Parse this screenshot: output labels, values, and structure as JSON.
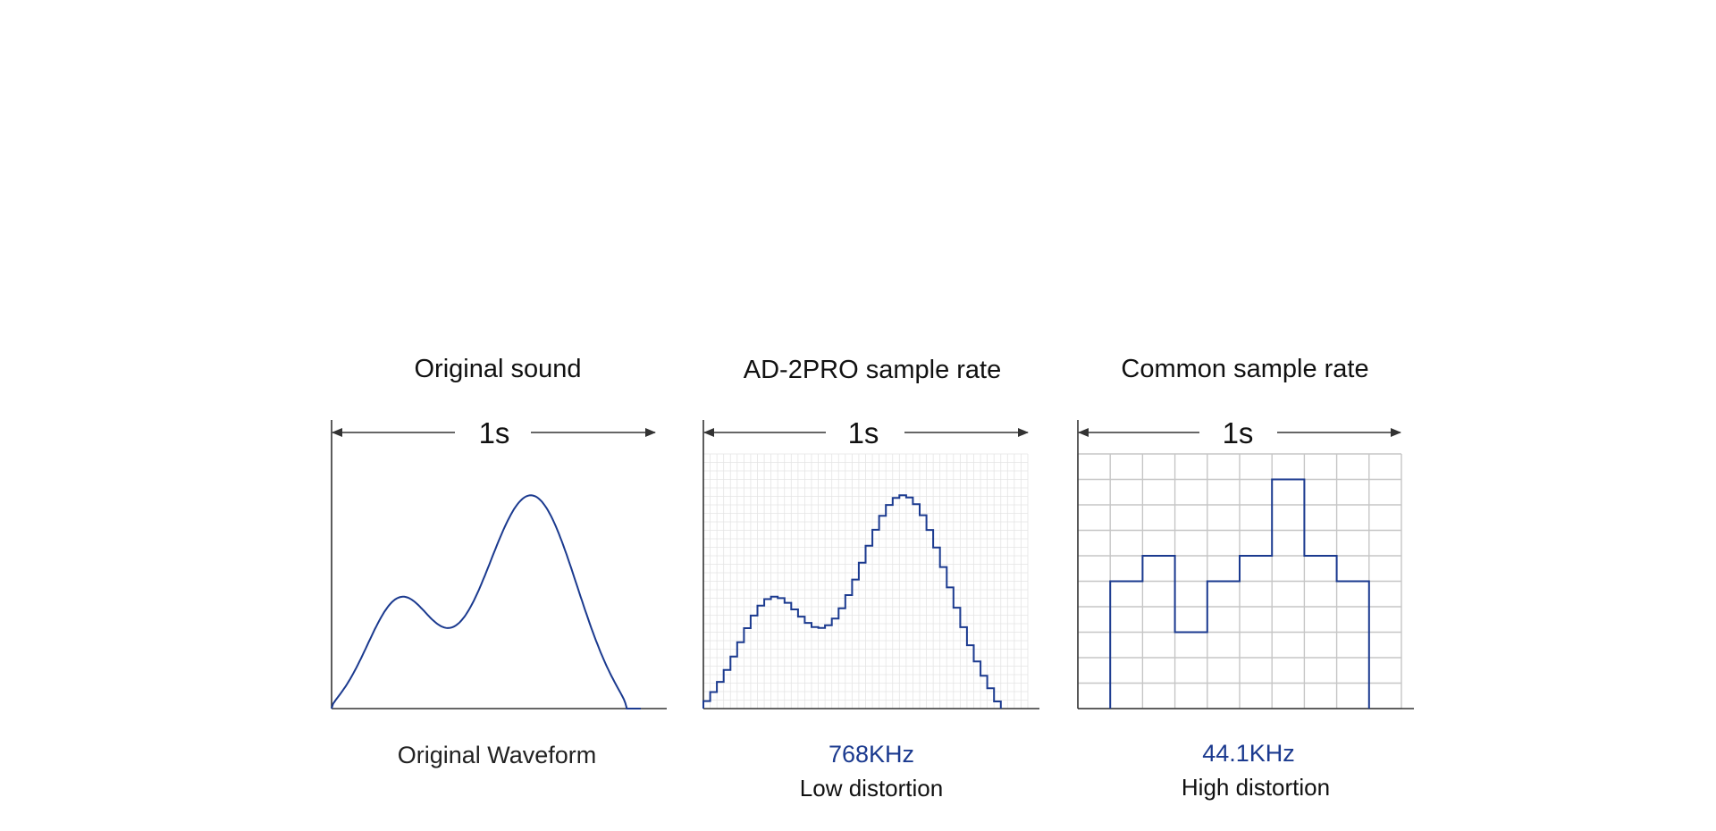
{
  "panels": [
    {
      "id": "original",
      "title": "Original sound",
      "span_label": "1s",
      "caption_lines": [
        {
          "text": "Original Waveform",
          "color": "#222222"
        }
      ],
      "grid": "none"
    },
    {
      "id": "ad2pro",
      "title": "AD-2PRO sample rate",
      "span_label": "1s",
      "caption_lines": [
        {
          "text": "768KHz",
          "color": "#1b3a8f"
        },
        {
          "text": "Low distortion",
          "color": "#111111"
        }
      ],
      "grid": "fine"
    },
    {
      "id": "common",
      "title": "Common sample rate",
      "span_label": "1s",
      "caption_lines": [
        {
          "text": "44.1KHz",
          "color": "#1b3a8f"
        },
        {
          "text": "High distortion",
          "color": "#111111"
        }
      ],
      "grid": "coarse"
    }
  ],
  "colors": {
    "waveform": "#1b3a8f",
    "axis": "#333333",
    "text": "#111111",
    "grid_fine": "#e4e4e4",
    "grid_coarse": "#c6c6c6"
  }
}
